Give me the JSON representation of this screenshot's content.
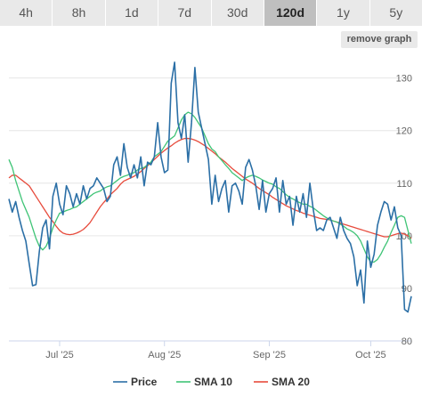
{
  "tabs": [
    {
      "label": "4h",
      "active": false
    },
    {
      "label": "8h",
      "active": false
    },
    {
      "label": "1d",
      "active": false
    },
    {
      "label": "7d",
      "active": false
    },
    {
      "label": "30d",
      "active": false
    },
    {
      "label": "120d",
      "active": true
    },
    {
      "label": "1y",
      "active": false
    },
    {
      "label": "5y",
      "active": false
    }
  ],
  "remove_graph_label": "remove graph",
  "chart_data": {
    "type": "line",
    "xlabel": "",
    "ylabel": "",
    "x_ticks": [
      "Jul '25",
      "Aug '25",
      "Sep '25",
      "Oct '25"
    ],
    "y_ticks": [
      80,
      90,
      100,
      110,
      120,
      130
    ],
    "ylim": [
      80,
      134
    ],
    "x": [
      1,
      2,
      3,
      4,
      5,
      6,
      7,
      8,
      9,
      10,
      11,
      12,
      13,
      14,
      15,
      16,
      17,
      18,
      19,
      20,
      21,
      22,
      23,
      24,
      25,
      26,
      27,
      28,
      29,
      30,
      31,
      32,
      33,
      34,
      35,
      36,
      37,
      38,
      39,
      40,
      41,
      42,
      43,
      44,
      45,
      46,
      47,
      48,
      49,
      50,
      51,
      52,
      53,
      54,
      55,
      56,
      57,
      58,
      59,
      60,
      61,
      62,
      63,
      64,
      65,
      66,
      67,
      68,
      69,
      70,
      71,
      72,
      73,
      74,
      75,
      76,
      77,
      78,
      79,
      80,
      81,
      82,
      83,
      84,
      85,
      86,
      87,
      88,
      89,
      90,
      91,
      92,
      93,
      94,
      95,
      96,
      97,
      98,
      99,
      100,
      101,
      102,
      103,
      104,
      105,
      106,
      107,
      108,
      109,
      110,
      111,
      112,
      113,
      114,
      115,
      116,
      117,
      118,
      119,
      120
    ],
    "grid": true,
    "legend_position": "bottom",
    "series": [
      {
        "name": "Price",
        "color": "#2b6fa6",
        "values": [
          107,
          104.5,
          106.5,
          103.5,
          101,
          99,
          94.7,
          90.5,
          90.7,
          97,
          101.5,
          103,
          97.5,
          107.5,
          110,
          106,
          104,
          109.5,
          108,
          105.5,
          108,
          106,
          109.5,
          107,
          109,
          109.5,
          111,
          110,
          109,
          106.5,
          107.5,
          113.5,
          115,
          111.5,
          117.5,
          113,
          111,
          113.5,
          111,
          115,
          109.5,
          114,
          113.5,
          115,
          121.5,
          115,
          112,
          112.5,
          129,
          133,
          121.5,
          118.5,
          123,
          114,
          121.5,
          132,
          123.5,
          120.5,
          117.5,
          114.5,
          106,
          111.5,
          106.5,
          109,
          110.5,
          104.5,
          109.5,
          110,
          108.5,
          106,
          113,
          114.5,
          112.5,
          109.5,
          105,
          110.5,
          104.5,
          108,
          109,
          111,
          104.5,
          110.5,
          106,
          107.5,
          102,
          107.5,
          104.5,
          108,
          103.5,
          110,
          105,
          101,
          101.5,
          101,
          103,
          103.5,
          101.5,
          99.5,
          103.5,
          101,
          99.5,
          98.5,
          96,
          90.5,
          93.5,
          87.2,
          99,
          94,
          96.5,
          102,
          104.5,
          106.5,
          106,
          103,
          105.5,
          101.5,
          100,
          86,
          85.5,
          88.5
        ]
      },
      {
        "name": "SMA 10",
        "color": "#3fc476",
        "values": [
          114.5,
          113,
          110.5,
          108.5,
          106.5,
          105,
          103.5,
          101.5,
          99.5,
          98,
          97.3,
          98,
          99.5,
          101.5,
          103,
          104.3,
          104.5,
          104.8,
          105,
          105.3,
          105.5,
          106,
          106.5,
          107,
          107.5,
          108,
          108.3,
          108.5,
          109,
          109.3,
          109.5,
          110,
          110.5,
          111,
          111.3,
          111.5,
          111.8,
          112,
          112.5,
          112.8,
          113,
          113.5,
          114,
          115,
          115.5,
          116,
          117,
          118,
          118.5,
          119,
          120.5,
          122,
          123,
          123.5,
          123.2,
          122.5,
          121.5,
          120.5,
          119,
          117.5,
          116.5,
          116,
          115,
          114.3,
          113.5,
          112.8,
          112,
          111.5,
          111,
          110.5,
          111,
          111.3,
          111.5,
          111.3,
          111,
          110.6,
          110.3,
          110,
          109.8,
          109.3,
          109,
          108.4,
          107.8,
          107.3,
          107,
          106.6,
          106.3,
          106,
          106,
          105.6,
          105.3,
          104.8,
          104.3,
          103.8,
          103.4,
          103,
          102.8,
          102.6,
          102.2,
          101.8,
          101.3,
          101,
          100.6,
          100,
          99,
          97.5,
          96,
          95,
          95,
          95.5,
          96.5,
          97.8,
          99,
          100.6,
          102,
          103.5,
          103.8,
          103.5,
          101,
          98.5
        ]
      },
      {
        "name": "SMA 20",
        "color": "#e74b3c",
        "values": [
          111,
          111.5,
          111.5,
          111,
          110.5,
          110,
          109.5,
          108.5,
          107.5,
          106.5,
          105.5,
          104.5,
          103.5,
          102.7,
          101.8,
          101,
          100.5,
          100.3,
          100.2,
          100.3,
          100.5,
          100.8,
          101.2,
          101.8,
          102.5,
          103.5,
          104.5,
          105.5,
          106.3,
          107,
          107.8,
          108.4,
          109,
          109.8,
          110.4,
          110.7,
          111,
          111.3,
          111.7,
          112.2,
          112.8,
          113.3,
          113.9,
          114.5,
          115.1,
          115.7,
          116.2,
          116.7,
          117.1,
          117.6,
          118,
          118.3,
          118.5,
          118.5,
          118.4,
          118.2,
          117.9,
          117.5,
          117.1,
          116.6,
          116.1,
          115.6,
          115,
          114.5,
          114,
          113.4,
          112.8,
          112.3,
          111.8,
          111.3,
          110.8,
          110.4,
          110,
          109.5,
          109,
          108.6,
          108.2,
          107.8,
          107.3,
          106.9,
          106.5,
          106.1,
          105.7,
          105.4,
          105.1,
          104.8,
          104.6,
          104.3,
          104.1,
          103.9,
          103.7,
          103.5,
          103.3,
          103.2,
          103.1,
          103,
          102.8,
          102.6,
          102.4,
          102.2,
          102,
          101.8,
          101.6,
          101.4,
          101.2,
          101,
          100.8,
          100.6,
          100.4,
          100.2,
          100,
          99.8,
          99.8,
          100,
          100.2,
          100.4,
          100.5,
          100.3,
          100,
          99.5
        ]
      }
    ]
  }
}
